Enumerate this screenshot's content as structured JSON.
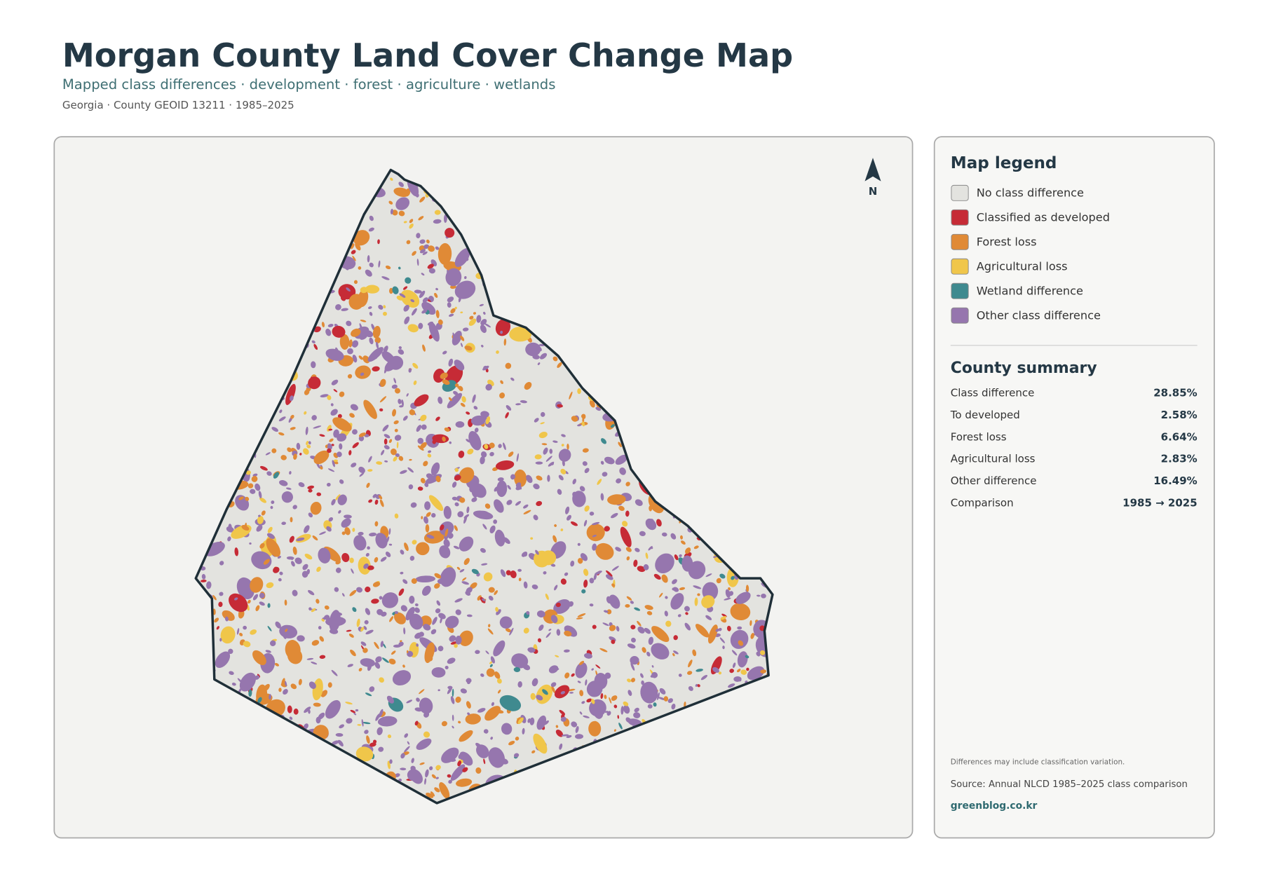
{
  "header": {
    "title": "Morgan County Land Cover Change Map",
    "subtitle": "Mapped class differences · development · forest · agriculture · wetlands",
    "meta": "Georgia · County GEOID 13211 · 1985–2025"
  },
  "north": "N",
  "legend": {
    "title": "Map legend",
    "items": [
      {
        "label": "No class difference",
        "color": "#e3e3df"
      },
      {
        "label": "Classified as developed",
        "color": "#c62b36"
      },
      {
        "label": "Forest loss",
        "color": "#e08a36"
      },
      {
        "label": "Agricultural loss",
        "color": "#f0c64a"
      },
      {
        "label": "Wetland difference",
        "color": "#3f8a8f"
      },
      {
        "label": "Other class difference",
        "color": "#9676ae"
      }
    ]
  },
  "summary": {
    "title": "County summary",
    "rows": [
      {
        "label": "Class difference",
        "value": "28.85%"
      },
      {
        "label": "To developed",
        "value": "2.58%"
      },
      {
        "label": "Forest loss",
        "value": "6.64%"
      },
      {
        "label": "Agricultural loss",
        "value": "2.83%"
      },
      {
        "label": "Other difference",
        "value": "16.49%"
      },
      {
        "label": "Comparison",
        "value": "1985 → 2025"
      }
    ]
  },
  "footer": {
    "note": "Differences may include classification variation.",
    "source": "Source: Annual NLCD 1985–2025 class comparison",
    "credit": "greenblog.co.kr"
  }
}
